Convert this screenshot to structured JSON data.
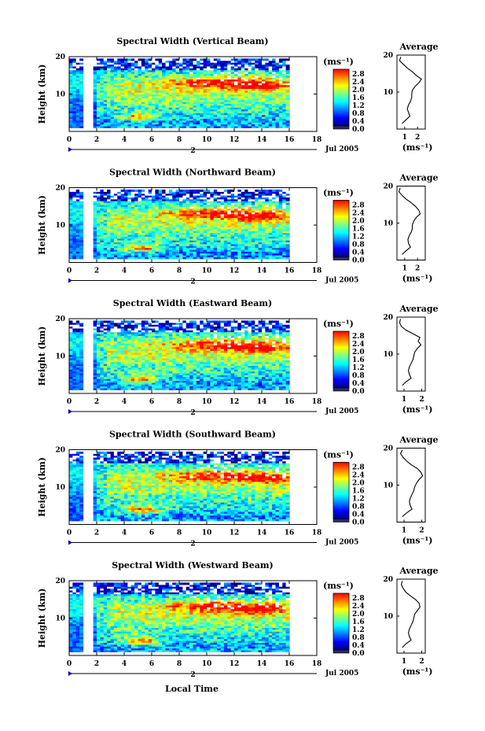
{
  "figure": {
    "x_axis_title": "Local Time",
    "date_label": "Jul 2005",
    "y_axis_title": "Height (km)",
    "cbar_unit": "(ms⁻¹)",
    "avg_title": "Average",
    "avg_unit": "(ms⁻¹)",
    "x_ticks": [
      "0",
      "2",
      "4",
      "6",
      "8",
      "10",
      "12",
      "14",
      "16",
      "18"
    ],
    "day_tick": "2",
    "height_ticks": [
      "10",
      "20"
    ],
    "cbar_ticks": [
      "0.0",
      "0.4",
      "0.8",
      "1.2",
      "1.6",
      "2.0",
      "2.4",
      "2.8"
    ]
  },
  "colors": {
    "scale": [
      "#000080",
      "#0000ff",
      "#0080ff",
      "#00ffff",
      "#80ff80",
      "#ffff00",
      "#ff8000",
      "#ff0000"
    ],
    "base": "#2a2a60"
  },
  "chart_data": [
    {
      "type": "heatmap",
      "title": "Spectral Width (Vertical Beam)",
      "x_range": [
        0,
        18
      ],
      "y_range": [
        0,
        20
      ],
      "avg_ticks": [
        "1",
        "2"
      ],
      "avg_range": [
        0.4,
        2.6
      ],
      "avg_profile": {
        "height": [
          1.5,
          2.5,
          3.5,
          4.5,
          5.5,
          6.5,
          7.5,
          8.5,
          9.5,
          10.5,
          11.5,
          12.5,
          13.5,
          14.5,
          15.5,
          16.5,
          17.5,
          18.5,
          19.5
        ],
        "value": [
          0.8,
          1.1,
          1.4,
          1.3,
          1.2,
          1.3,
          1.45,
          1.55,
          1.55,
          1.6,
          1.8,
          2.1,
          2.3,
          1.9,
          1.6,
          1.2,
          0.9,
          0.6,
          0.7
        ]
      }
    },
    {
      "type": "heatmap",
      "title": "Spectral Width (Northward Beam)",
      "x_range": [
        0,
        18
      ],
      "y_range": [
        0,
        20
      ],
      "avg_ticks": [
        "1",
        "2"
      ],
      "avg_range": [
        0.4,
        2.6
      ],
      "avg_profile": {
        "height": [
          1.5,
          2.5,
          3.5,
          4.5,
          5.5,
          6.5,
          7.5,
          8.5,
          9.5,
          10.5,
          11.5,
          12.5,
          13.5,
          14.5,
          15.5,
          16.5,
          17.5,
          18.5,
          19.5
        ],
        "value": [
          0.8,
          1.1,
          1.45,
          1.3,
          1.25,
          1.35,
          1.5,
          1.6,
          1.6,
          1.7,
          1.9,
          2.2,
          2.1,
          1.85,
          1.5,
          1.1,
          0.8,
          0.55,
          0.65
        ]
      }
    },
    {
      "type": "heatmap",
      "title": "Spectral Width (Eastward Beam)",
      "x_range": [
        0,
        18
      ],
      "y_range": [
        0,
        20
      ],
      "avg_ticks": [
        "1",
        "2"
      ],
      "avg_range": [
        0.6,
        2.2
      ],
      "avg_profile": {
        "height": [
          1.5,
          2.5,
          3.5,
          4.5,
          5.5,
          6.5,
          7.5,
          8.5,
          9.5,
          10.5,
          11.5,
          12.5,
          13.5,
          14.5,
          15.5,
          16.5,
          17.5,
          18.5,
          19.5
        ],
        "value": [
          0.9,
          1.1,
          1.4,
          1.3,
          1.25,
          1.3,
          1.4,
          1.5,
          1.55,
          1.6,
          1.75,
          1.95,
          1.8,
          1.9,
          1.5,
          1.1,
          0.85,
          0.75,
          0.8
        ]
      }
    },
    {
      "type": "heatmap",
      "title": "Spectral Width (Southward Beam)",
      "x_range": [
        0,
        18
      ],
      "y_range": [
        0,
        20
      ],
      "avg_ticks": [
        "1",
        "2"
      ],
      "avg_range": [
        0.6,
        2.2
      ],
      "avg_profile": {
        "height": [
          1.5,
          2.5,
          3.5,
          4.5,
          5.5,
          6.5,
          7.5,
          8.5,
          9.5,
          10.5,
          11.5,
          12.5,
          13.5,
          14.5,
          15.5,
          16.5,
          17.5,
          18.5,
          19.5
        ],
        "value": [
          0.9,
          1.15,
          1.45,
          1.35,
          1.3,
          1.35,
          1.45,
          1.55,
          1.6,
          1.7,
          1.85,
          2.05,
          1.95,
          1.75,
          1.4,
          1.15,
          0.95,
          0.8,
          0.9
        ]
      }
    },
    {
      "type": "heatmap",
      "title": "Spectral Width (Westward Beam)",
      "x_range": [
        0,
        18
      ],
      "y_range": [
        0,
        20
      ],
      "avg_ticks": [
        "1",
        "2"
      ],
      "avg_range": [
        0.6,
        2.2
      ],
      "avg_profile": {
        "height": [
          1.5,
          2.5,
          3.5,
          4.5,
          5.5,
          6.5,
          7.5,
          8.5,
          9.5,
          10.5,
          11.5,
          12.5,
          13.5,
          14.5,
          15.5,
          16.5,
          17.5,
          18.5,
          19.5
        ],
        "value": [
          0.9,
          1.1,
          1.4,
          1.3,
          1.25,
          1.3,
          1.4,
          1.5,
          1.55,
          1.6,
          1.75,
          1.9,
          1.85,
          1.65,
          1.35,
          1.1,
          0.95,
          0.85,
          0.9
        ]
      }
    }
  ]
}
